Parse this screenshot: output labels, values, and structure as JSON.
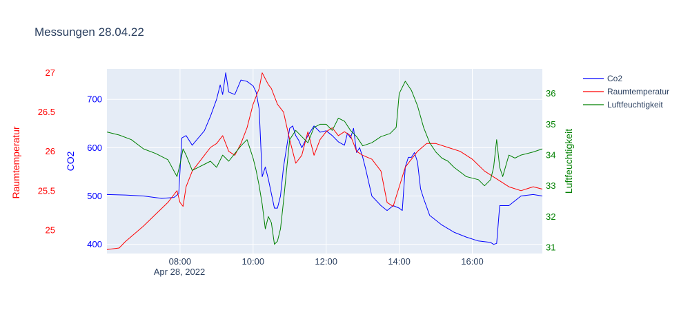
{
  "chart_data": {
    "type": "line",
    "title": "Messungen 28.04.22",
    "x_axis": {
      "type": "time",
      "tick_labels": [
        "08:00",
        "10:00",
        "12:00",
        "14:00",
        "16:00"
      ],
      "tick_values": [
        "2022-04-28T08:00",
        "2022-04-28T10:00",
        "2022-04-28T12:00",
        "2022-04-28T14:00",
        "2022-04-28T16:00"
      ],
      "date_label": "Apr 28, 2022",
      "range": [
        "2022-04-28T06:00",
        "2022-04-28T17:55"
      ]
    },
    "y_axes": {
      "temp": {
        "label": "Raumtemperatur",
        "color": "#ff0000",
        "range": [
          24.7,
          27.05
        ],
        "ticks": [
          25,
          25.5,
          26,
          26.5,
          27
        ],
        "tick_labels": [
          "25",
          "25.5",
          "26",
          "26.5",
          "27"
        ],
        "side": "left-outer"
      },
      "co2": {
        "label": "CO2",
        "color": "#0000ff",
        "range": [
          381,
          763
        ],
        "ticks": [
          400,
          500,
          600,
          700
        ],
        "tick_labels": [
          "400",
          "500",
          "600",
          "700"
        ],
        "side": "left"
      },
      "hum": {
        "label": "Luftfeuchtigkeit",
        "color": "#008000",
        "range": [
          30.8,
          36.8
        ],
        "ticks": [
          31,
          32,
          33,
          34,
          35,
          36
        ],
        "tick_labels": [
          "31",
          "32",
          "33",
          "34",
          "35",
          "36"
        ],
        "side": "right"
      }
    },
    "grid": true,
    "legend": {
      "placement": "top-right",
      "entries": [
        "Co2",
        "Raumtemperatur",
        "Luftfeuchtigkeit"
      ]
    },
    "series": [
      {
        "name": "Co2",
        "axis": "co2",
        "color": "#0000ff",
        "points": [
          [
            "06:00",
            503
          ],
          [
            "06:30",
            502
          ],
          [
            "07:00",
            500
          ],
          [
            "07:30",
            495
          ],
          [
            "07:50",
            497
          ],
          [
            "07:58",
            505
          ],
          [
            "08:03",
            620
          ],
          [
            "08:10",
            625
          ],
          [
            "08:20",
            605
          ],
          [
            "08:30",
            620
          ],
          [
            "08:40",
            635
          ],
          [
            "08:50",
            665
          ],
          [
            "09:00",
            700
          ],
          [
            "09:06",
            730
          ],
          [
            "09:10",
            710
          ],
          [
            "09:15",
            755
          ],
          [
            "09:20",
            715
          ],
          [
            "09:30",
            710
          ],
          [
            "09:40",
            740
          ],
          [
            "09:50",
            737
          ],
          [
            "10:00",
            728
          ],
          [
            "10:05",
            715
          ],
          [
            "10:10",
            680
          ],
          [
            "10:15",
            540
          ],
          [
            "10:20",
            560
          ],
          [
            "10:25",
            535
          ],
          [
            "10:35",
            475
          ],
          [
            "10:40",
            475
          ],
          [
            "10:45",
            500
          ],
          [
            "10:50",
            560
          ],
          [
            "10:55",
            600
          ],
          [
            "11:00",
            640
          ],
          [
            "11:05",
            645
          ],
          [
            "11:10",
            625
          ],
          [
            "11:15",
            615
          ],
          [
            "11:20",
            600
          ],
          [
            "11:30",
            625
          ],
          [
            "11:40",
            645
          ],
          [
            "11:50",
            632
          ],
          [
            "12:00",
            635
          ],
          [
            "12:10",
            625
          ],
          [
            "12:20",
            612
          ],
          [
            "12:30",
            605
          ],
          [
            "12:35",
            630
          ],
          [
            "12:40",
            620
          ],
          [
            "12:45",
            640
          ],
          [
            "12:50",
            590
          ],
          [
            "12:55",
            600
          ],
          [
            "13:00",
            580
          ],
          [
            "13:05",
            555
          ],
          [
            "13:15",
            500
          ],
          [
            "13:30",
            480
          ],
          [
            "13:40",
            470
          ],
          [
            "13:50",
            480
          ],
          [
            "14:00",
            475
          ],
          [
            "14:05",
            470
          ],
          [
            "14:10",
            560
          ],
          [
            "14:15",
            580
          ],
          [
            "14:20",
            580
          ],
          [
            "14:25",
            590
          ],
          [
            "14:30",
            570
          ],
          [
            "14:35",
            515
          ],
          [
            "14:40",
            495
          ],
          [
            "14:50",
            460
          ],
          [
            "15:10",
            440
          ],
          [
            "15:30",
            425
          ],
          [
            "15:50",
            415
          ],
          [
            "16:10",
            407
          ],
          [
            "16:30",
            404
          ],
          [
            "16:35",
            400
          ],
          [
            "16:40",
            402
          ],
          [
            "16:45",
            480
          ],
          [
            "17:00",
            480
          ],
          [
            "17:10",
            490
          ],
          [
            "17:20",
            500
          ],
          [
            "17:40",
            503
          ],
          [
            "17:55",
            500
          ]
        ]
      },
      {
        "name": "Raumtemperatur",
        "axis": "temp",
        "color": "#ff0000",
        "points": [
          [
            "06:00",
            24.75
          ],
          [
            "06:20",
            24.77
          ],
          [
            "06:30",
            24.85
          ],
          [
            "07:00",
            25.05
          ],
          [
            "07:20",
            25.2
          ],
          [
            "07:40",
            25.35
          ],
          [
            "07:50",
            25.45
          ],
          [
            "07:55",
            25.5
          ],
          [
            "08:00",
            25.35
          ],
          [
            "08:05",
            25.3
          ],
          [
            "08:10",
            25.55
          ],
          [
            "08:20",
            25.75
          ],
          [
            "08:30",
            25.85
          ],
          [
            "08:40",
            25.95
          ],
          [
            "08:50",
            26.05
          ],
          [
            "09:00",
            26.1
          ],
          [
            "09:10",
            26.2
          ],
          [
            "09:20",
            26.0
          ],
          [
            "09:30",
            25.95
          ],
          [
            "09:40",
            26.1
          ],
          [
            "09:50",
            26.3
          ],
          [
            "10:00",
            26.6
          ],
          [
            "10:10",
            26.8
          ],
          [
            "10:15",
            27.0
          ],
          [
            "10:25",
            26.85
          ],
          [
            "10:30",
            26.8
          ],
          [
            "10:40",
            26.6
          ],
          [
            "10:50",
            26.5
          ],
          [
            "11:00",
            26.15
          ],
          [
            "11:10",
            25.85
          ],
          [
            "11:20",
            25.95
          ],
          [
            "11:30",
            26.25
          ],
          [
            "11:40",
            25.95
          ],
          [
            "11:50",
            26.15
          ],
          [
            "12:00",
            26.25
          ],
          [
            "12:10",
            26.3
          ],
          [
            "12:20",
            26.2
          ],
          [
            "12:30",
            26.25
          ],
          [
            "12:40",
            26.2
          ],
          [
            "12:50",
            26.0
          ],
          [
            "13:00",
            25.95
          ],
          [
            "13:15",
            25.9
          ],
          [
            "13:30",
            25.75
          ],
          [
            "13:40",
            25.35
          ],
          [
            "13:50",
            25.3
          ],
          [
            "14:00",
            25.55
          ],
          [
            "14:10",
            25.8
          ],
          [
            "14:20",
            25.9
          ],
          [
            "14:30",
            26.0
          ],
          [
            "14:45",
            26.1
          ],
          [
            "15:00",
            26.1
          ],
          [
            "15:20",
            26.05
          ],
          [
            "15:40",
            26.0
          ],
          [
            "16:00",
            25.9
          ],
          [
            "16:20",
            25.75
          ],
          [
            "16:40",
            25.65
          ],
          [
            "17:00",
            25.55
          ],
          [
            "17:20",
            25.5
          ],
          [
            "17:40",
            25.55
          ],
          [
            "17:55",
            25.52
          ]
        ]
      },
      {
        "name": "Luftfeuchtigkeit",
        "axis": "hum",
        "color": "#008000",
        "points": [
          [
            "06:00",
            34.75
          ],
          [
            "06:20",
            34.65
          ],
          [
            "06:40",
            34.5
          ],
          [
            "07:00",
            34.2
          ],
          [
            "07:20",
            34.05
          ],
          [
            "07:40",
            33.85
          ],
          [
            "07:55",
            33.3
          ],
          [
            "08:00",
            33.7
          ],
          [
            "08:05",
            34.2
          ],
          [
            "08:10",
            34.0
          ],
          [
            "08:20",
            33.5
          ],
          [
            "08:30",
            33.6
          ],
          [
            "08:40",
            33.7
          ],
          [
            "08:50",
            33.8
          ],
          [
            "09:00",
            33.6
          ],
          [
            "09:10",
            34.0
          ],
          [
            "09:20",
            33.8
          ],
          [
            "09:30",
            34.05
          ],
          [
            "09:40",
            34.3
          ],
          [
            "09:50",
            34.5
          ],
          [
            "10:00",
            33.9
          ],
          [
            "10:05",
            33.5
          ],
          [
            "10:10",
            33.0
          ],
          [
            "10:15",
            32.4
          ],
          [
            "10:20",
            31.6
          ],
          [
            "10:25",
            32.0
          ],
          [
            "10:30",
            31.8
          ],
          [
            "10:35",
            31.1
          ],
          [
            "10:40",
            31.2
          ],
          [
            "10:45",
            31.6
          ],
          [
            "10:50",
            32.5
          ],
          [
            "10:55",
            33.5
          ],
          [
            "11:00",
            34.5
          ],
          [
            "11:10",
            34.8
          ],
          [
            "11:20",
            34.6
          ],
          [
            "11:30",
            34.4
          ],
          [
            "11:40",
            34.9
          ],
          [
            "11:50",
            35.0
          ],
          [
            "12:00",
            35.0
          ],
          [
            "12:10",
            34.8
          ],
          [
            "12:20",
            35.2
          ],
          [
            "12:30",
            35.1
          ],
          [
            "12:40",
            34.8
          ],
          [
            "12:50",
            34.6
          ],
          [
            "13:00",
            34.3
          ],
          [
            "13:15",
            34.4
          ],
          [
            "13:30",
            34.6
          ],
          [
            "13:45",
            34.7
          ],
          [
            "13:55",
            34.9
          ],
          [
            "14:00",
            36.0
          ],
          [
            "14:10",
            36.4
          ],
          [
            "14:20",
            36.1
          ],
          [
            "14:30",
            35.6
          ],
          [
            "14:40",
            34.9
          ],
          [
            "14:50",
            34.4
          ],
          [
            "15:00",
            34.1
          ],
          [
            "15:10",
            33.9
          ],
          [
            "15:20",
            33.8
          ],
          [
            "15:30",
            33.6
          ],
          [
            "15:50",
            33.3
          ],
          [
            "16:10",
            33.2
          ],
          [
            "16:20",
            33.0
          ],
          [
            "16:30",
            33.2
          ],
          [
            "16:35",
            33.6
          ],
          [
            "16:40",
            34.5
          ],
          [
            "16:45",
            33.6
          ],
          [
            "16:50",
            33.3
          ],
          [
            "17:00",
            34.0
          ],
          [
            "17:10",
            33.9
          ],
          [
            "17:20",
            34.0
          ],
          [
            "17:40",
            34.1
          ],
          [
            "17:55",
            34.2
          ]
        ]
      }
    ]
  }
}
